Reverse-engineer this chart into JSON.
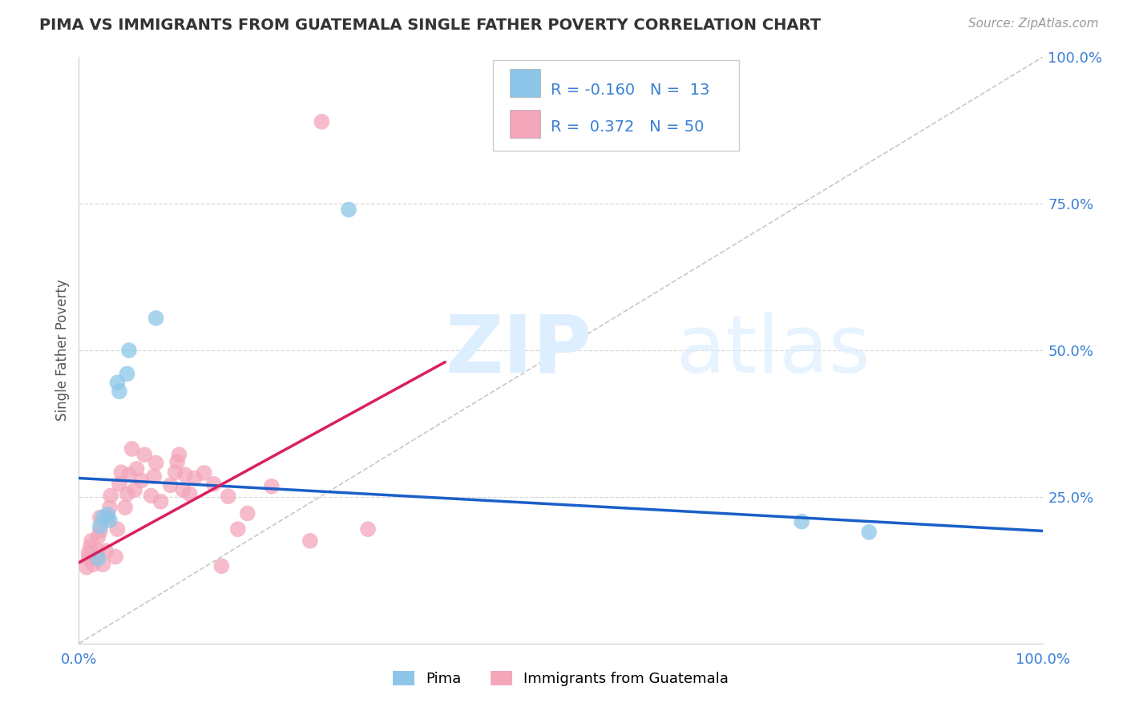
{
  "title": "PIMA VS IMMIGRANTS FROM GUATEMALA SINGLE FATHER POVERTY CORRELATION CHART",
  "source": "Source: ZipAtlas.com",
  "ylabel": "Single Father Poverty",
  "color_blue": "#8dc6e8",
  "color_pink": "#f4a6ba",
  "color_line_blue": "#1a5fc8",
  "color_line_pink": "#d92060",
  "color_diag": "#c8c8c8",
  "color_grid": "#d8d8d8",
  "color_legend_text": "#3a7fd5",
  "blue_points": [
    [
      0.02,
      0.145
    ],
    [
      0.022,
      0.2
    ],
    [
      0.025,
      0.215
    ],
    [
      0.03,
      0.22
    ],
    [
      0.032,
      0.21
    ],
    [
      0.04,
      0.445
    ],
    [
      0.042,
      0.43
    ],
    [
      0.05,
      0.46
    ],
    [
      0.052,
      0.5
    ],
    [
      0.08,
      0.555
    ],
    [
      0.75,
      0.208
    ],
    [
      0.82,
      0.19
    ],
    [
      0.28,
      0.74
    ]
  ],
  "pink_points": [
    [
      0.008,
      0.13
    ],
    [
      0.01,
      0.145
    ],
    [
      0.01,
      0.155
    ],
    [
      0.012,
      0.165
    ],
    [
      0.013,
      0.175
    ],
    [
      0.015,
      0.135
    ],
    [
      0.018,
      0.148
    ],
    [
      0.02,
      0.158
    ],
    [
      0.02,
      0.182
    ],
    [
      0.022,
      0.192
    ],
    [
      0.022,
      0.215
    ],
    [
      0.025,
      0.135
    ],
    [
      0.028,
      0.158
    ],
    [
      0.03,
      0.215
    ],
    [
      0.032,
      0.232
    ],
    [
      0.033,
      0.252
    ],
    [
      0.038,
      0.148
    ],
    [
      0.04,
      0.195
    ],
    [
      0.042,
      0.272
    ],
    [
      0.044,
      0.292
    ],
    [
      0.048,
      0.232
    ],
    [
      0.05,
      0.255
    ],
    [
      0.052,
      0.288
    ],
    [
      0.055,
      0.332
    ],
    [
      0.058,
      0.262
    ],
    [
      0.06,
      0.298
    ],
    [
      0.065,
      0.278
    ],
    [
      0.068,
      0.322
    ],
    [
      0.075,
      0.252
    ],
    [
      0.078,
      0.285
    ],
    [
      0.08,
      0.308
    ],
    [
      0.085,
      0.242
    ],
    [
      0.095,
      0.27
    ],
    [
      0.1,
      0.292
    ],
    [
      0.102,
      0.31
    ],
    [
      0.104,
      0.322
    ],
    [
      0.108,
      0.262
    ],
    [
      0.11,
      0.288
    ],
    [
      0.115,
      0.255
    ],
    [
      0.12,
      0.282
    ],
    [
      0.13,
      0.291
    ],
    [
      0.14,
      0.272
    ],
    [
      0.148,
      0.132
    ],
    [
      0.155,
      0.251
    ],
    [
      0.165,
      0.195
    ],
    [
      0.175,
      0.222
    ],
    [
      0.2,
      0.268
    ],
    [
      0.24,
      0.175
    ],
    [
      0.252,
      0.89
    ],
    [
      0.3,
      0.195
    ]
  ],
  "blue_line": [
    0.0,
    0.282,
    1.0,
    0.192
  ],
  "pink_line": [
    0.0,
    0.138,
    0.38,
    0.48
  ],
  "xlim": [
    0,
    1
  ],
  "ylim": [
    0,
    1
  ]
}
